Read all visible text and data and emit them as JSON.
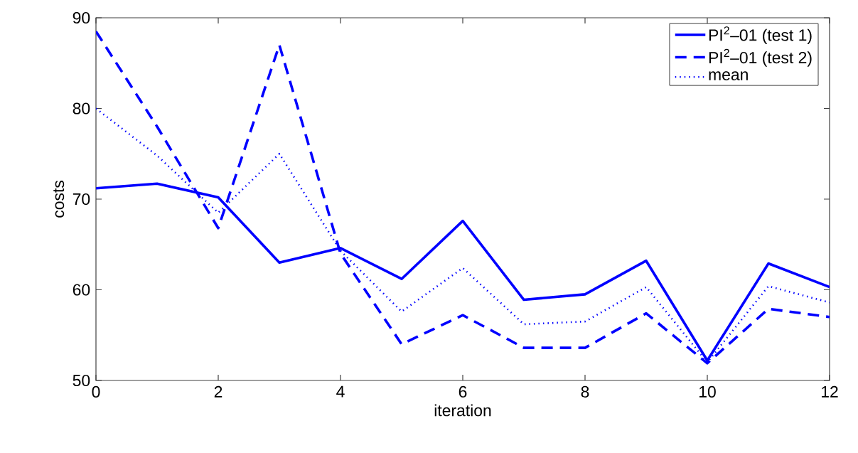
{
  "chart_data": {
    "type": "line",
    "xlabel": "iteration",
    "ylabel": "costs",
    "x": [
      0,
      1,
      2,
      3,
      4,
      5,
      6,
      7,
      8,
      9,
      10,
      11,
      12
    ],
    "series": [
      {
        "name": "PI$^{2}$–01 (test 1)",
        "color": "#0000ff",
        "line_style": "solid",
        "values": [
          71.2,
          71.7,
          70.2,
          63.0,
          64.6,
          61.2,
          67.6,
          58.9,
          59.5,
          63.2,
          52.2,
          62.9,
          60.3
        ]
      },
      {
        "name": "PI$^{2}$–01 (test 2)",
        "color": "#0000ff",
        "line_style": "dashed",
        "values": [
          88.5,
          78.0,
          66.8,
          87.0,
          64.0,
          54.0,
          57.2,
          53.6,
          53.6,
          57.4,
          51.9,
          57.9,
          57.0
        ]
      },
      {
        "name": "mean",
        "color": "#0000ff",
        "line_style": "dotted",
        "values": [
          80.0,
          74.8,
          68.5,
          75.0,
          64.3,
          57.6,
          62.4,
          56.2,
          56.5,
          60.3,
          52.0,
          60.4,
          58.6
        ]
      }
    ],
    "xlim": [
      0,
      12
    ],
    "ylim": [
      50,
      90
    ],
    "xticks": [
      0,
      2,
      4,
      6,
      8,
      10,
      12
    ],
    "yticks": [
      50,
      60,
      70,
      80,
      90
    ],
    "legend": "top right"
  }
}
